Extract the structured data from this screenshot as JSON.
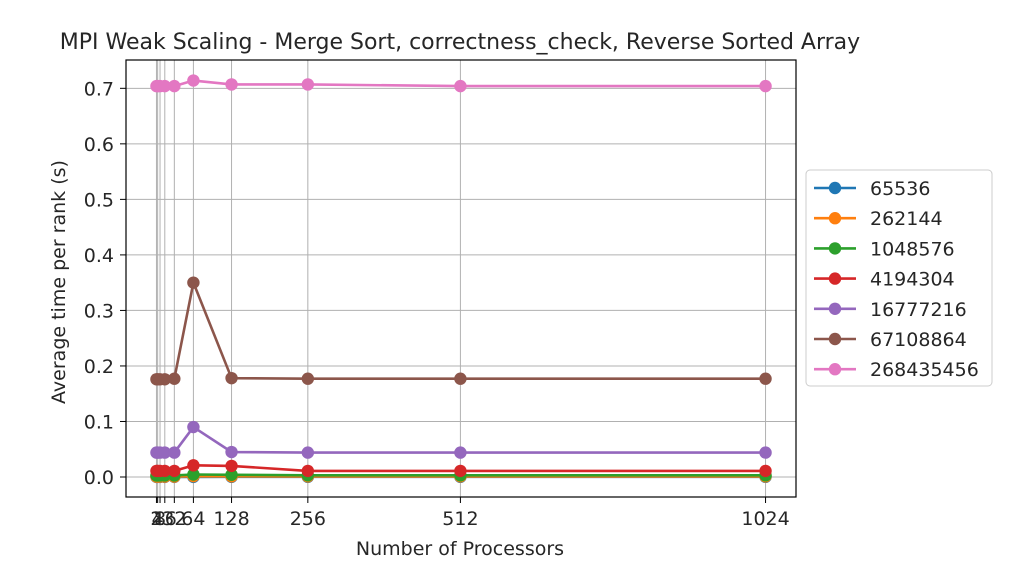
{
  "chart_data": {
    "type": "line",
    "title": "MPI Weak Scaling - Merge Sort, correctness_check, Reverse Sorted Array",
    "xlabel": "Number of Processors",
    "ylabel": "Average time per rank (s)",
    "x": [
      2,
      4,
      8,
      16,
      32,
      64,
      128,
      256,
      512,
      1024
    ],
    "x_tick_labels": [
      "2",
      "4",
      "8",
      "16",
      "32",
      "64",
      "128",
      "256",
      "512",
      "1024"
    ],
    "xlim": [
      -49.1,
      1075.1
    ],
    "ylim": [
      -0.036,
      0.751
    ],
    "y_ticks": [
      0.0,
      0.1,
      0.2,
      0.3,
      0.4,
      0.5,
      0.6,
      0.7
    ],
    "y_tick_labels": [
      "0.0",
      "0.1",
      "0.2",
      "0.3",
      "0.4",
      "0.5",
      "0.6",
      "0.7"
    ],
    "grid": true,
    "legend_position": "outside-right",
    "series": [
      {
        "name": "65536",
        "color": "#1f77b4",
        "values": [
          0.0002,
          0.0002,
          0.0002,
          0.0002,
          0.0002,
          0.0002,
          0.0003,
          0.0003,
          0.0003,
          0.0003
        ]
      },
      {
        "name": "262144",
        "color": "#ff7f0e",
        "values": [
          0.0008,
          0.0008,
          0.0008,
          0.0008,
          0.0008,
          0.0015,
          0.0012,
          0.0011,
          0.0011,
          0.0011
        ]
      },
      {
        "name": "1048576",
        "color": "#2ca02c",
        "values": [
          0.0028,
          0.0028,
          0.0028,
          0.0028,
          0.0028,
          0.0045,
          0.004,
          0.003,
          0.003,
          0.003
        ]
      },
      {
        "name": "4194304",
        "color": "#d62728",
        "values": [
          0.011,
          0.011,
          0.011,
          0.011,
          0.011,
          0.021,
          0.02,
          0.011,
          0.011,
          0.011
        ]
      },
      {
        "name": "16777216",
        "color": "#9467bd",
        "values": [
          0.044,
          0.044,
          0.044,
          0.044,
          0.044,
          0.09,
          0.045,
          0.044,
          0.044,
          0.044
        ]
      },
      {
        "name": "67108864",
        "color": "#8c564b",
        "values": [
          0.176,
          0.176,
          0.176,
          0.176,
          0.177,
          0.35,
          0.178,
          0.177,
          0.177,
          0.177
        ]
      },
      {
        "name": "268435456",
        "color": "#e377c2",
        "values": [
          0.704,
          0.704,
          0.704,
          0.704,
          0.704,
          0.714,
          0.707,
          0.707,
          0.704,
          0.704
        ]
      }
    ]
  }
}
